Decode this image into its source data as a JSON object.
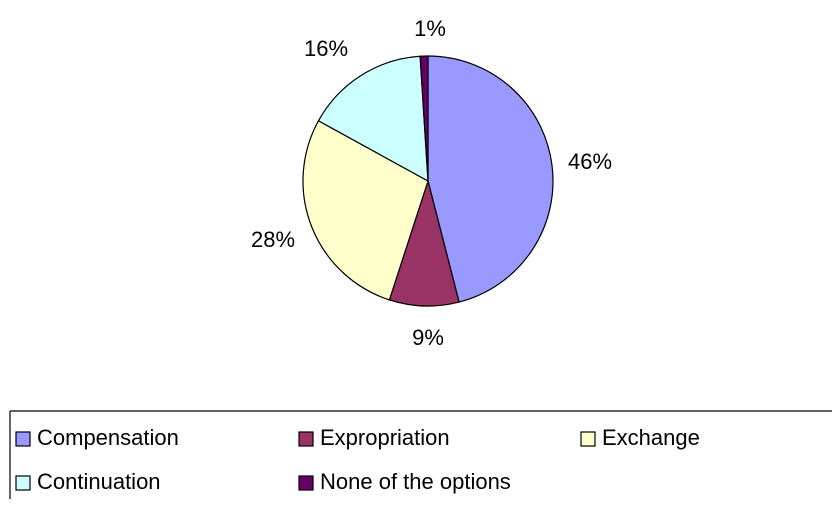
{
  "chart_data": {
    "type": "pie",
    "title": "",
    "categories": [
      "Compensation",
      "Expropriation",
      "Exchange",
      "Continuation",
      "None of the options"
    ],
    "values": [
      46,
      9,
      28,
      16,
      1
    ],
    "data_labels": [
      "46%",
      "9%",
      "28%",
      "16%",
      "1%"
    ],
    "colors": [
      "#9999FF",
      "#993366",
      "#FFFFCC",
      "#CCFFFF",
      "#660066"
    ],
    "legend": {
      "placement": "bottom",
      "entries": [
        "Compensation",
        "Expropriation",
        "Exchange",
        "Continuation",
        "None of the options"
      ]
    },
    "grid": false
  }
}
